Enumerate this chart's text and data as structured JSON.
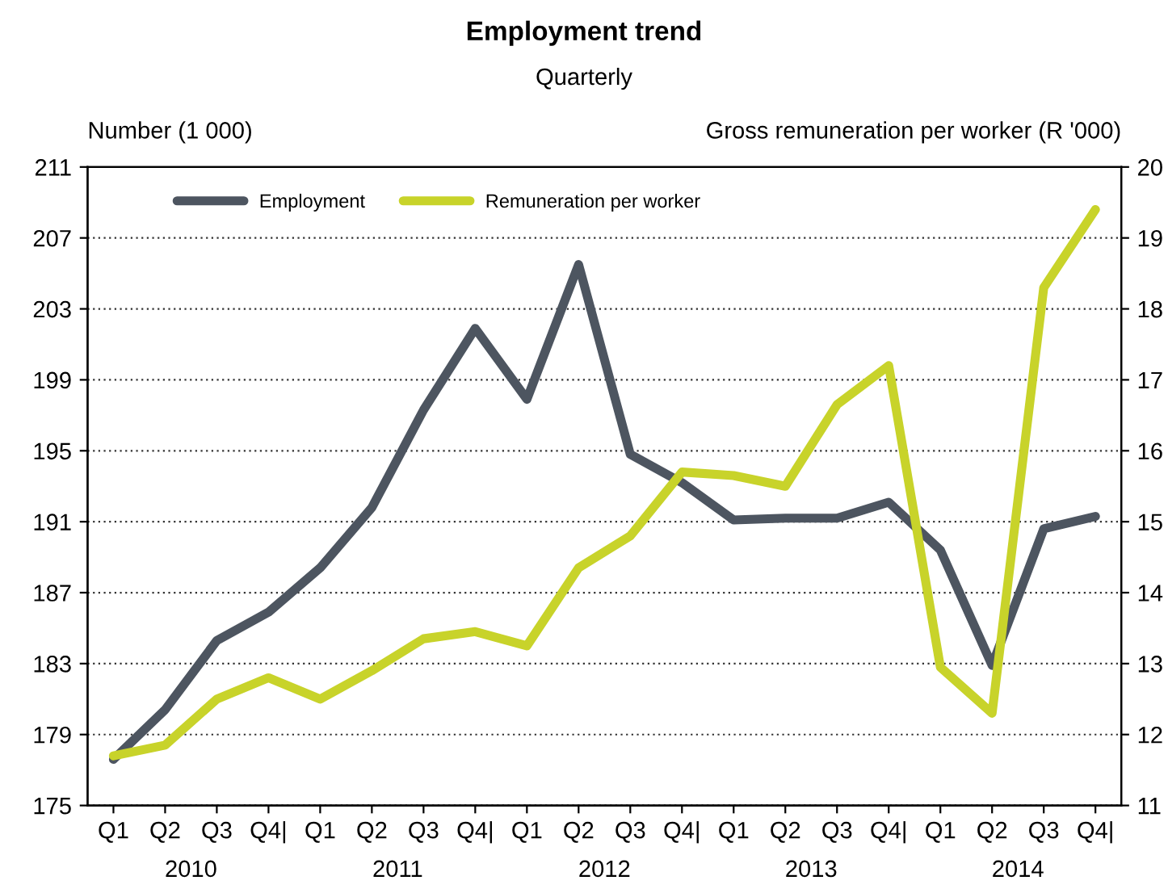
{
  "chart_data": {
    "type": "line",
    "title": "Employment trend",
    "subtitle": "Quarterly",
    "ylabel": "Number (1 000)",
    "y2label": "Gross remuneration per worker (R '000)",
    "categories": [
      "Q1",
      "Q2",
      "Q3",
      "Q4|",
      "Q1",
      "Q2",
      "Q3",
      "Q4|",
      "Q1",
      "Q2",
      "Q3",
      "Q4|",
      "Q1",
      "Q2",
      "Q3",
      "Q4|",
      "Q1",
      "Q2",
      "Q3",
      "Q4|"
    ],
    "annotations": [
      "2010",
      "2011",
      "2012",
      "2013",
      "2014"
    ],
    "series": [
      {
        "name": "Employment",
        "color": "#4d5560",
        "values": [
          177.6,
          180.4,
          184.3,
          185.9,
          188.4,
          191.8,
          197.3,
          201.9,
          197.9,
          205.5,
          194.8,
          193.2,
          191.1,
          191.2,
          191.2,
          192.1,
          189.4,
          182.9,
          190.6,
          191.3
        ]
      },
      {
        "name": "Remuneration per worker",
        "color": "#c8d32a",
        "axis": "y2",
        "values": [
          11.7,
          11.85,
          12.5,
          12.8,
          12.5,
          12.9,
          13.35,
          13.45,
          13.25,
          14.35,
          14.8,
          15.7,
          15.65,
          15.5,
          16.65,
          17.2,
          12.95,
          12.3,
          18.3,
          19.4
        ]
      }
    ],
    "ylim": [
      175,
      211
    ],
    "yticks": [
      175,
      179,
      183,
      187,
      191,
      195,
      199,
      203,
      207,
      211
    ],
    "y2lim": [
      11,
      20
    ],
    "y2ticks": [
      11,
      12,
      13,
      14,
      15,
      16,
      17,
      18,
      19,
      20
    ],
    "grid": "y",
    "legend": "top left",
    "marker": "none",
    "line_style": "solid"
  }
}
